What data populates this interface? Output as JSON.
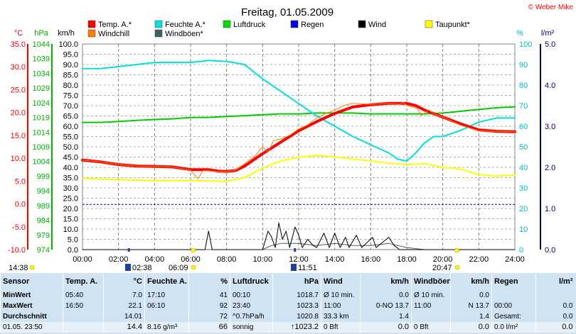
{
  "chart_data": {
    "type": "line",
    "title": "Freitag, 01.05.2009",
    "copyright": "© Weber Mike",
    "x_ticks": [
      "00:00",
      "02:00",
      "04:00",
      "06:00",
      "08:00",
      "10:00",
      "12:00",
      "14:00",
      "16:00",
      "18:00",
      "20:00",
      "22:00",
      "24:00"
    ],
    "axes": {
      "temp": {
        "label": "°C",
        "color": "#ff0000",
        "ticks": [
          "35.0",
          "30.0",
          "25.0",
          "20.0",
          "15.0",
          "10.0",
          "5.0",
          "0.0",
          "-5.0",
          "-10.0"
        ],
        "range": [
          -10,
          35
        ]
      },
      "pressure": {
        "label": "hPa",
        "color": "#00b000",
        "ticks": [
          "1044",
          "1039",
          "1034",
          "1029",
          "1024",
          "1019",
          "1014",
          "1009",
          "1004",
          "999",
          "994",
          "989",
          "984",
          "979",
          "974"
        ],
        "range": [
          974,
          1044
        ]
      },
      "wind": {
        "label": "km/h",
        "color": "#000000",
        "ticks": [
          "100.0",
          "95.0",
          "90.0",
          "85.0",
          "80.0",
          "75.0",
          "70.0",
          "65.0",
          "60.0",
          "55.0",
          "50.0",
          "45.0",
          "40.0",
          "35.0",
          "30.0",
          "25.0",
          "20.0",
          "15.0",
          "10.0",
          "5.0",
          "0.0"
        ],
        "range": [
          0,
          100
        ]
      },
      "humidity": {
        "label": "%",
        "color": "#00c0c0",
        "ticks": [
          "100",
          "90",
          "80",
          "70",
          "60",
          "50",
          "40",
          "30",
          "20",
          "10",
          "0"
        ],
        "range": [
          0,
          100
        ]
      },
      "rain": {
        "label": "l/m²",
        "color": "#000080",
        "ticks": [
          "5.0",
          "4.0",
          "3.0",
          "2.0",
          "1.0",
          "0.0"
        ],
        "range": [
          0,
          5
        ]
      }
    },
    "legend": [
      {
        "name": "Temp. A.*",
        "color": "#ff0000"
      },
      {
        "name": "Feuchte A.*",
        "color": "#00e0e0"
      },
      {
        "name": "Luftdruck",
        "color": "#00dd00"
      },
      {
        "name": "Regen",
        "color": "#0000ff"
      },
      {
        "name": "Wind",
        "color": "#000000"
      },
      {
        "name": "Taupunkt*",
        "color": "#ffff00"
      },
      {
        "name": "Windchill",
        "color": "#ff8000"
      },
      {
        "name": "Windböen*",
        "color": "#406060"
      }
    ],
    "series": {
      "temperature": {
        "axis": "temp",
        "color": "#ff0000",
        "width": 4,
        "points": [
          [
            0,
            9.6
          ],
          [
            1,
            9.2
          ],
          [
            2,
            8.6
          ],
          [
            3,
            8.3
          ],
          [
            4,
            8.2
          ],
          [
            5,
            8.1
          ],
          [
            6,
            7.5
          ],
          [
            7,
            7.5
          ],
          [
            7.5,
            7.2
          ],
          [
            8,
            7.1
          ],
          [
            8.5,
            7.3
          ],
          [
            9,
            8.3
          ],
          [
            10,
            11.0
          ],
          [
            11,
            13.5
          ],
          [
            12,
            16.0
          ],
          [
            13,
            18.0
          ],
          [
            14,
            19.8
          ],
          [
            15,
            21.2
          ],
          [
            16,
            21.7
          ],
          [
            17,
            22.0
          ],
          [
            18,
            22.0
          ],
          [
            18.5,
            21.5
          ],
          [
            19,
            20.5
          ],
          [
            20,
            19.0
          ],
          [
            21,
            17.5
          ],
          [
            22,
            16.2
          ],
          [
            23,
            15.9
          ],
          [
            24,
            15.8
          ]
        ]
      },
      "windchill": {
        "axis": "temp",
        "color": "#ff8000",
        "width": 1,
        "points": [
          [
            0,
            9.6
          ],
          [
            1,
            9.2
          ],
          [
            2,
            8.6
          ],
          [
            3,
            8.3
          ],
          [
            4,
            8.2
          ],
          [
            5,
            8.1
          ],
          [
            6,
            7.4
          ],
          [
            6.4,
            5.5
          ],
          [
            6.7,
            7.3
          ],
          [
            7.5,
            7.1
          ],
          [
            8,
            7.0
          ],
          [
            8.5,
            7.4
          ],
          [
            9,
            8.8
          ],
          [
            9.6,
            10.6
          ],
          [
            10,
            12.5
          ],
          [
            10.3,
            11.3
          ],
          [
            10.6,
            13.8
          ],
          [
            11,
            14.2
          ],
          [
            11.5,
            15.0
          ],
          [
            12,
            16.4
          ],
          [
            12.5,
            17.3
          ],
          [
            13,
            18.8
          ],
          [
            13.5,
            19.8
          ],
          [
            14,
            20.5
          ],
          [
            14.5,
            21.5
          ],
          [
            15,
            22.0
          ],
          [
            16,
            21.8
          ],
          [
            17,
            22.0
          ],
          [
            17.6,
            21.8
          ],
          [
            17.8,
            22.2
          ],
          [
            18,
            21.6
          ],
          [
            18.6,
            20.8
          ],
          [
            18.8,
            19.3
          ],
          [
            19.2,
            20.6
          ],
          [
            19.6,
            19.5
          ],
          [
            20,
            19.0
          ],
          [
            21,
            17.2
          ],
          [
            22,
            16.0
          ],
          [
            23,
            15.9
          ],
          [
            24,
            15.8
          ]
        ]
      },
      "humidity": {
        "axis": "humidity",
        "color": "#00e0e0",
        "width": 2,
        "points": [
          [
            0,
            88
          ],
          [
            1,
            88
          ],
          [
            2,
            89
          ],
          [
            3,
            90
          ],
          [
            4,
            91
          ],
          [
            5,
            91
          ],
          [
            6,
            91
          ],
          [
            7,
            92
          ],
          [
            8,
            91.5
          ],
          [
            9,
            90
          ],
          [
            10,
            83
          ],
          [
            11,
            77
          ],
          [
            12,
            71
          ],
          [
            13,
            65
          ],
          [
            14,
            60
          ],
          [
            15,
            55
          ],
          [
            16,
            51
          ],
          [
            17,
            47
          ],
          [
            17.5,
            44
          ],
          [
            18,
            43
          ],
          [
            18.5,
            47
          ],
          [
            19,
            52
          ],
          [
            19.5,
            55
          ],
          [
            20,
            55
          ],
          [
            21,
            58
          ],
          [
            22,
            62
          ],
          [
            23,
            64
          ],
          [
            24,
            64
          ]
        ]
      },
      "pressure": {
        "axis": "pressure",
        "color": "#00cc00",
        "width": 2,
        "points": [
          [
            0,
            1017.3
          ],
          [
            1,
            1017.3
          ],
          [
            2,
            1017.6
          ],
          [
            3,
            1018.0
          ],
          [
            4,
            1018.3
          ],
          [
            5,
            1018.5
          ],
          [
            6,
            1019.0
          ],
          [
            7,
            1019.0
          ],
          [
            8,
            1019.3
          ],
          [
            9,
            1019.6
          ],
          [
            10,
            1019.9
          ],
          [
            11,
            1020.2
          ],
          [
            12,
            1020.2
          ],
          [
            13,
            1020.5
          ],
          [
            14,
            1020.5
          ],
          [
            15,
            1020.5
          ],
          [
            16,
            1020.2
          ],
          [
            17,
            1020.2
          ],
          [
            18,
            1020.2
          ],
          [
            19,
            1020.2
          ],
          [
            20,
            1020.5
          ],
          [
            21,
            1021.1
          ],
          [
            22,
            1021.7
          ],
          [
            23,
            1022.3
          ],
          [
            24,
            1022.6
          ]
        ]
      },
      "dewpoint": {
        "axis": "temp",
        "color": "#ffff00",
        "width": 2,
        "points": [
          [
            0,
            5.6
          ],
          [
            2,
            5.3
          ],
          [
            4,
            5.1
          ],
          [
            6,
            5.1
          ],
          [
            7,
            5.0
          ],
          [
            8,
            4.9
          ],
          [
            9,
            5.8
          ],
          [
            10,
            7.8
          ],
          [
            11,
            9.4
          ],
          [
            12,
            10.2
          ],
          [
            13,
            10.6
          ],
          [
            14,
            10.3
          ],
          [
            15,
            9.8
          ],
          [
            16,
            9.4
          ],
          [
            17,
            8.9
          ],
          [
            18,
            8.6
          ],
          [
            19,
            8.8
          ],
          [
            20,
            8.0
          ],
          [
            21,
            7.6
          ],
          [
            22,
            6.4
          ],
          [
            23,
            6.1
          ],
          [
            24,
            6.3
          ]
        ]
      },
      "wind": {
        "axis": "wind",
        "color": "#000000",
        "width": 1,
        "points": [
          [
            0,
            0
          ],
          [
            6.8,
            0
          ],
          [
            7.0,
            9
          ],
          [
            7.2,
            0
          ],
          [
            10.0,
            0
          ],
          [
            10.3,
            9
          ],
          [
            10.5,
            6
          ],
          [
            10.7,
            1
          ],
          [
            10.9,
            13
          ],
          [
            11.1,
            5
          ],
          [
            11.3,
            9
          ],
          [
            11.5,
            1
          ],
          [
            11.8,
            11
          ],
          [
            12.0,
            7
          ],
          [
            12.2,
            1
          ],
          [
            12.5,
            5
          ],
          [
            12.8,
            2
          ],
          [
            13.0,
            1
          ],
          [
            13.4,
            8
          ],
          [
            13.7,
            1
          ],
          [
            14.0,
            8
          ],
          [
            14.3,
            1
          ],
          [
            14.6,
            6
          ],
          [
            14.8,
            1
          ],
          [
            15.2,
            7
          ],
          [
            15.5,
            1
          ],
          [
            16.1,
            6
          ],
          [
            16.3,
            1
          ],
          [
            17.0,
            6
          ],
          [
            17.3,
            2
          ],
          [
            17.6,
            0
          ],
          [
            24,
            0
          ]
        ]
      },
      "gust": {
        "axis": "wind",
        "color": "#406060",
        "width": 1,
        "points": [
          [
            0,
            0
          ],
          [
            10,
            0
          ],
          [
            10.5,
            2
          ],
          [
            11,
            3
          ],
          [
            12,
            3
          ],
          [
            13,
            2
          ],
          [
            14,
            3
          ],
          [
            15,
            2
          ],
          [
            16,
            2
          ],
          [
            17,
            3
          ],
          [
            17.5,
            2
          ],
          [
            18,
            1
          ],
          [
            19,
            0
          ],
          [
            24,
            0
          ]
        ]
      }
    },
    "rain_baseline_level": 22,
    "markers": {
      "sunrise": "06:09",
      "sunset": "20:47",
      "moonrise": "02:38",
      "moonset": "11:51",
      "start_label": "14:38"
    }
  },
  "stats": {
    "headers": {
      "sensor": "Sensor",
      "temp": "Temp. A.",
      "temp_unit": "°C",
      "hum": "Feuchte A.",
      "hum_unit": "%",
      "press": "Luftdruck",
      "press_unit": "hPa",
      "wind": "Wind",
      "wind_unit": "km/h",
      "gust": "Windböen",
      "gust_unit": "km/h",
      "rain": "Regen",
      "rain_unit": "l/m²"
    },
    "min": {
      "label": "MinWert",
      "temp_time": "05:40",
      "temp_val": "7.0",
      "hum_time": "17:10",
      "hum_val": "41",
      "press_time": "00:10",
      "press_val": "1018.7",
      "wind_label": "Ø 10 min.",
      "wind_val": "0.0",
      "gust_label": "Ø 10 min.",
      "gust_val": "0.0",
      "rain_label": "Regen",
      "rain_val": ""
    },
    "max": {
      "label": "MaxWert",
      "temp_time": "16:50",
      "temp_val": "22.1",
      "hum_time": "06:10",
      "hum_val": "92",
      "press_time": "23:40",
      "press_val": "1023.3",
      "wind_time": "11:00",
      "wind_dir": "0-NO",
      "wind_val": "13.7",
      "gust_time": "11:00",
      "gust_dir": "N",
      "gust_val": "13.7",
      "rain_time": "00:00",
      "rain_val": "0.0"
    },
    "avg": {
      "label": "Durchschnitt",
      "temp_val": "14.01",
      "hum_val": "72",
      "press_trend": "^0.7hPa/h",
      "press_val": "1020.8",
      "wind_dist": "33.3 km",
      "wind_val": "1.4",
      "gust_val": "1.4",
      "rain_label": "Gesamt:",
      "rain_val": "0.0"
    },
    "current": {
      "label": "01.05. 23:50",
      "temp_val": "14.4",
      "dew": "8.16 g/m³",
      "hum_val": "66",
      "press_text": "sonnig",
      "press_val": "↑1023.2",
      "wind_bft": "0 Bft",
      "wind_val": "0.0",
      "gust_bft": "0 Bft",
      "gust_val": "0.0",
      "rain_text": "0.0 l/m²",
      "rain_val": "0.0"
    }
  }
}
